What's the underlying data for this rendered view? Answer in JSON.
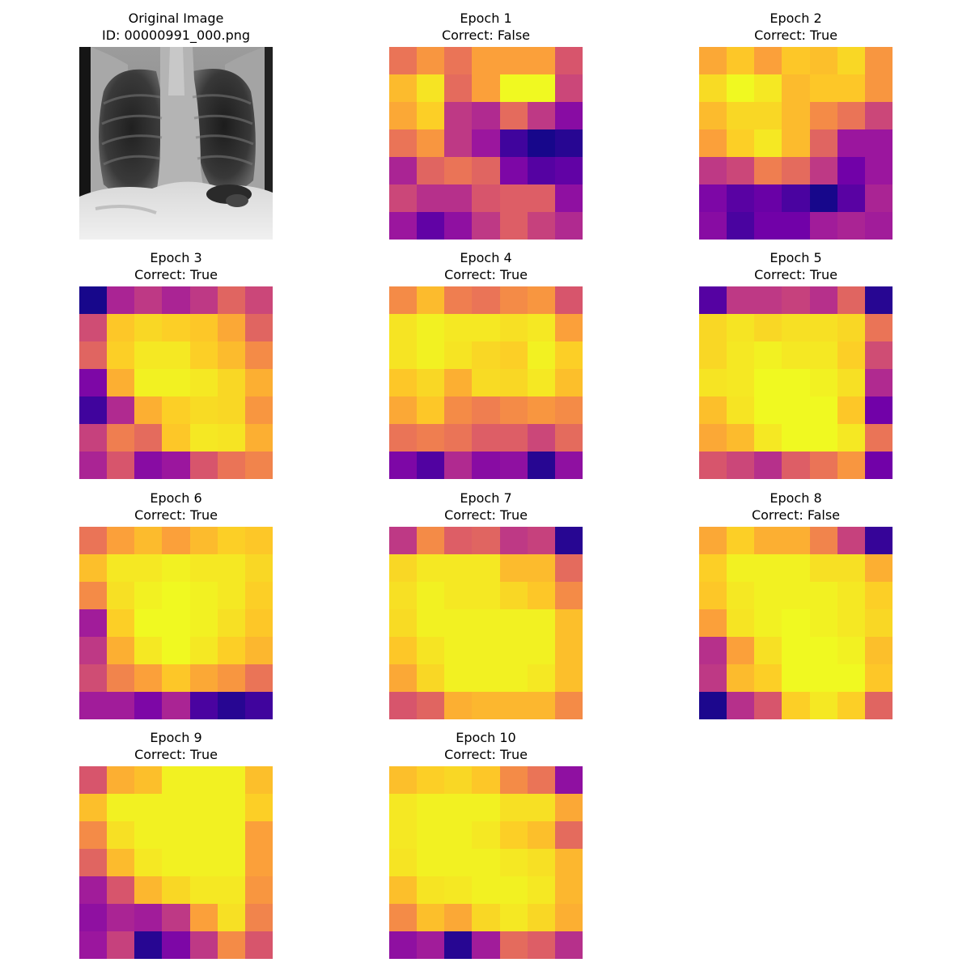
{
  "figure": {
    "colormap": "plasma",
    "colormap_stops": [
      "#0d0887",
      "#46039f",
      "#7201a8",
      "#9c179e",
      "#bd3786",
      "#d8576b",
      "#ed7953",
      "#fb9f3a",
      "#fdca26",
      "#f0f921"
    ]
  },
  "original": {
    "title_line1": "Original Image",
    "title_line2": "ID: 00000991_000.png"
  },
  "chart_data": [
    {
      "type": "heatmap",
      "title": "Epoch 1",
      "subtitle": "Correct: False",
      "grid": [
        [
          0.65,
          0.75,
          0.65,
          0.78,
          0.78,
          0.78,
          0.55
        ],
        [
          0.85,
          0.95,
          0.62,
          0.78,
          1.0,
          1.0,
          0.5
        ],
        [
          0.8,
          0.9,
          0.45,
          0.4,
          0.62,
          0.45,
          0.28
        ],
        [
          0.65,
          0.75,
          0.45,
          0.33,
          0.1,
          0.02,
          0.05
        ],
        [
          0.38,
          0.6,
          0.65,
          0.6,
          0.25,
          0.15,
          0.18
        ],
        [
          0.5,
          0.42,
          0.42,
          0.55,
          0.58,
          0.58,
          0.3
        ],
        [
          0.33,
          0.18,
          0.3,
          0.45,
          0.58,
          0.48,
          0.4
        ]
      ]
    },
    {
      "type": "heatmap",
      "title": "Epoch 2",
      "subtitle": "Correct: True",
      "grid": [
        [
          0.8,
          0.88,
          0.78,
          0.88,
          0.86,
          0.92,
          0.75
        ],
        [
          0.93,
          1.0,
          0.96,
          0.85,
          0.88,
          0.88,
          0.75
        ],
        [
          0.85,
          0.92,
          0.92,
          0.85,
          0.72,
          0.65,
          0.5
        ],
        [
          0.78,
          0.9,
          0.96,
          0.85,
          0.6,
          0.33,
          0.33
        ],
        [
          0.45,
          0.5,
          0.68,
          0.62,
          0.45,
          0.22,
          0.33
        ],
        [
          0.25,
          0.16,
          0.2,
          0.12,
          0.02,
          0.16,
          0.38
        ],
        [
          0.28,
          0.12,
          0.22,
          0.22,
          0.35,
          0.38,
          0.35
        ]
      ]
    },
    {
      "type": "heatmap",
      "title": "Epoch 3",
      "subtitle": "Correct: True",
      "grid": [
        [
          0.02,
          0.38,
          0.45,
          0.38,
          0.45,
          0.6,
          0.5
        ],
        [
          0.52,
          0.88,
          0.92,
          0.9,
          0.88,
          0.8,
          0.6
        ],
        [
          0.6,
          0.9,
          0.96,
          0.96,
          0.9,
          0.85,
          0.72
        ],
        [
          0.25,
          0.82,
          0.98,
          0.98,
          0.96,
          0.92,
          0.82
        ],
        [
          0.1,
          0.4,
          0.82,
          0.9,
          0.93,
          0.92,
          0.75
        ],
        [
          0.48,
          0.68,
          0.62,
          0.88,
          0.96,
          0.95,
          0.82
        ],
        [
          0.38,
          0.55,
          0.28,
          0.33,
          0.55,
          0.65,
          0.7
        ]
      ]
    },
    {
      "type": "heatmap",
      "title": "Epoch 4",
      "subtitle": "Correct: True",
      "grid": [
        [
          0.72,
          0.85,
          0.68,
          0.65,
          0.72,
          0.75,
          0.55
        ],
        [
          0.95,
          0.98,
          0.96,
          0.96,
          0.94,
          0.96,
          0.78
        ],
        [
          0.95,
          0.98,
          0.95,
          0.92,
          0.9,
          0.98,
          0.9
        ],
        [
          0.88,
          0.92,
          0.82,
          0.93,
          0.92,
          0.96,
          0.86
        ],
        [
          0.8,
          0.88,
          0.72,
          0.68,
          0.72,
          0.75,
          0.72
        ],
        [
          0.65,
          0.68,
          0.65,
          0.58,
          0.58,
          0.5,
          0.62
        ],
        [
          0.25,
          0.14,
          0.4,
          0.28,
          0.3,
          0.05,
          0.3
        ]
      ]
    },
    {
      "type": "heatmap",
      "title": "Epoch 5",
      "subtitle": "Correct: True",
      "grid": [
        [
          0.15,
          0.45,
          0.45,
          0.48,
          0.42,
          0.6,
          0.05
        ],
        [
          0.92,
          0.95,
          0.92,
          0.94,
          0.94,
          0.92,
          0.65
        ],
        [
          0.92,
          0.96,
          0.98,
          0.96,
          0.96,
          0.9,
          0.52
        ],
        [
          0.95,
          0.96,
          1.0,
          1.0,
          0.98,
          0.94,
          0.4
        ],
        [
          0.86,
          0.95,
          1.0,
          1.0,
          1.0,
          0.88,
          0.22
        ],
        [
          0.8,
          0.85,
          0.96,
          1.0,
          1.0,
          0.96,
          0.65
        ],
        [
          0.55,
          0.5,
          0.42,
          0.58,
          0.65,
          0.75,
          0.22
        ]
      ]
    },
    {
      "type": "heatmap",
      "title": "Epoch 6",
      "subtitle": "Correct: True",
      "grid": [
        [
          0.65,
          0.78,
          0.85,
          0.78,
          0.85,
          0.9,
          0.88
        ],
        [
          0.86,
          0.96,
          0.96,
          0.98,
          0.96,
          0.96,
          0.92
        ],
        [
          0.72,
          0.94,
          0.98,
          1.0,
          0.98,
          0.96,
          0.9
        ],
        [
          0.35,
          0.9,
          1.0,
          1.0,
          0.98,
          0.94,
          0.88
        ],
        [
          0.45,
          0.82,
          0.96,
          1.0,
          0.96,
          0.9,
          0.84
        ],
        [
          0.52,
          0.7,
          0.78,
          0.88,
          0.8,
          0.75,
          0.65
        ],
        [
          0.35,
          0.35,
          0.25,
          0.38,
          0.12,
          0.05,
          0.1
        ]
      ]
    },
    {
      "type": "heatmap",
      "title": "Epoch 7",
      "subtitle": "Correct: True",
      "grid": [
        [
          0.45,
          0.72,
          0.58,
          0.6,
          0.45,
          0.48,
          0.05
        ],
        [
          0.92,
          0.96,
          0.96,
          0.96,
          0.85,
          0.85,
          0.62
        ],
        [
          0.94,
          0.98,
          0.96,
          0.96,
          0.92,
          0.88,
          0.72
        ],
        [
          0.93,
          0.98,
          0.98,
          0.98,
          0.98,
          0.98,
          0.86
        ],
        [
          0.88,
          0.95,
          0.98,
          0.98,
          0.98,
          0.98,
          0.86
        ],
        [
          0.8,
          0.92,
          0.98,
          0.98,
          0.98,
          0.96,
          0.86
        ],
        [
          0.55,
          0.6,
          0.82,
          0.84,
          0.84,
          0.84,
          0.72
        ]
      ]
    },
    {
      "type": "heatmap",
      "title": "Epoch 8",
      "subtitle": "Correct: False",
      "grid": [
        [
          0.8,
          0.9,
          0.82,
          0.82,
          0.7,
          0.48,
          0.08
        ],
        [
          0.9,
          0.98,
          0.98,
          0.98,
          0.94,
          0.94,
          0.82
        ],
        [
          0.88,
          0.96,
          0.98,
          0.98,
          0.98,
          0.96,
          0.9
        ],
        [
          0.78,
          0.95,
          0.98,
          1.0,
          0.98,
          0.96,
          0.92
        ],
        [
          0.42,
          0.78,
          0.94,
          1.0,
          1.0,
          0.98,
          0.86
        ],
        [
          0.45,
          0.85,
          0.9,
          1.0,
          1.0,
          1.0,
          0.88
        ],
        [
          0.03,
          0.42,
          0.55,
          0.9,
          0.96,
          0.9,
          0.6
        ]
      ]
    },
    {
      "type": "heatmap",
      "title": "Epoch 9",
      "subtitle": "Correct: True",
      "grid": [
        [
          0.55,
          0.82,
          0.86,
          0.98,
          0.98,
          0.98,
          0.86
        ],
        [
          0.86,
          0.98,
          0.98,
          0.98,
          0.98,
          0.98,
          0.9
        ],
        [
          0.72,
          0.94,
          0.98,
          0.98,
          0.98,
          0.98,
          0.78
        ],
        [
          0.6,
          0.85,
          0.96,
          0.98,
          0.98,
          0.98,
          0.78
        ],
        [
          0.35,
          0.55,
          0.84,
          0.92,
          0.96,
          0.96,
          0.75
        ],
        [
          0.3,
          0.38,
          0.35,
          0.45,
          0.78,
          0.94,
          0.7
        ],
        [
          0.33,
          0.48,
          0.05,
          0.25,
          0.45,
          0.72,
          0.55
        ]
      ]
    },
    {
      "type": "heatmap",
      "title": "Epoch 10",
      "subtitle": "Correct: True",
      "grid": [
        [
          0.86,
          0.9,
          0.92,
          0.88,
          0.72,
          0.65,
          0.3
        ],
        [
          0.96,
          0.98,
          0.98,
          0.98,
          0.94,
          0.94,
          0.8
        ],
        [
          0.96,
          0.98,
          0.98,
          0.96,
          0.9,
          0.86,
          0.62
        ],
        [
          0.95,
          0.98,
          0.98,
          0.98,
          0.96,
          0.94,
          0.84
        ],
        [
          0.86,
          0.95,
          0.96,
          0.98,
          0.98,
          0.96,
          0.84
        ],
        [
          0.72,
          0.86,
          0.8,
          0.92,
          0.96,
          0.92,
          0.82
        ],
        [
          0.3,
          0.35,
          0.05,
          0.35,
          0.62,
          0.58,
          0.42
        ]
      ]
    }
  ]
}
